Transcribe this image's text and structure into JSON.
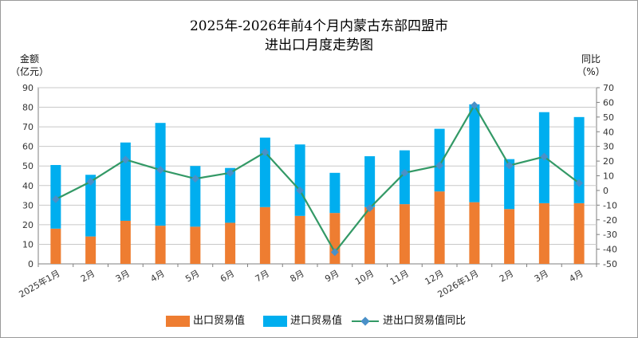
{
  "title": {
    "line1": "2025年-2026年前4个月内蒙古东部四盟市",
    "line2": "进出口月度走势图"
  },
  "left_axis_title": {
    "line1": "金额",
    "line2": "（亿元）"
  },
  "right_axis_title": {
    "line1": "同比",
    "line2": "（%）"
  },
  "colors": {
    "export": "#ee7d31",
    "import": "#00aeef",
    "yoy_line": "#339966",
    "yoy_marker": "#4a90c8",
    "grid": "#c8c8c8",
    "axis": "#7f7f7f"
  },
  "legend": {
    "export_label": "出口贸易值",
    "import_label": "进口贸易值",
    "yoy_label": "进出口贸易值同比"
  },
  "chart_data": {
    "type": "bar",
    "stacked": true,
    "categories": [
      "2025年1月",
      "2月",
      "3月",
      "4月",
      "5月",
      "6月",
      "7月",
      "8月",
      "9月",
      "10月",
      "11月",
      "12月",
      "2026年1月",
      "2月",
      "3月",
      "4月"
    ],
    "series": [
      {
        "name": "出口贸易值",
        "type": "bar",
        "axis": "left",
        "values": [
          18,
          14,
          22,
          19.5,
          19,
          21,
          29,
          24.5,
          26,
          29,
          30.5,
          37,
          31.5,
          28,
          31,
          31
        ]
      },
      {
        "name": "进口贸易值",
        "type": "bar",
        "axis": "left",
        "values": [
          32.5,
          31.5,
          40,
          52.5,
          31,
          28,
          35.5,
          36.5,
          20.5,
          26,
          27.5,
          32,
          50,
          25.5,
          46.5,
          44
        ]
      },
      {
        "name": "进出口贸易值同比",
        "type": "line",
        "axis": "right",
        "values": [
          -6,
          6,
          21,
          14,
          8,
          12,
          26,
          0,
          -42,
          -12,
          12,
          17,
          58,
          17,
          23,
          5
        ]
      }
    ],
    "ylim_left": [
      0,
      90
    ],
    "yticks_left": [
      0,
      10,
      20,
      30,
      40,
      50,
      60,
      70,
      80,
      90
    ],
    "ylim_right": [
      -50,
      70
    ],
    "yticks_right": [
      -50,
      -40,
      -30,
      -20,
      -10,
      0,
      10,
      20,
      30,
      40,
      50,
      60,
      70
    ],
    "grid": true,
    "legend_position": "bottom"
  }
}
